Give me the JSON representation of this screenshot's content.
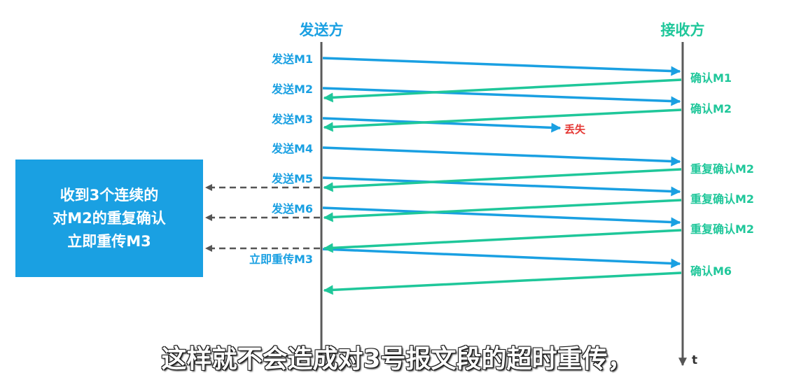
{
  "colors": {
    "send": "#1aa0e2",
    "ack": "#1fc79a",
    "lost": "#e53935",
    "timeline": "#5a5a5a",
    "box": "#1aa0e2"
  },
  "sender_title": "发送方",
  "receiver_title": "接收方",
  "time_axis_label": "t",
  "send_labels": [
    "发送M1",
    "发送M2",
    "发送M3",
    "发送M4",
    "发送M5",
    "发送M6",
    "立即重传M3"
  ],
  "ack_labels": [
    "确认M1",
    "确认M2",
    "重复确认M2",
    "重复确认M2",
    "重复确认M2",
    "确认M6"
  ],
  "lost_label": "丢失",
  "info_box": {
    "lines": [
      "收到3个连续的",
      "对M2的重复确认",
      "立即重传M3"
    ]
  },
  "caption": "这样就不会造成对3号报文段的超时重传，"
}
